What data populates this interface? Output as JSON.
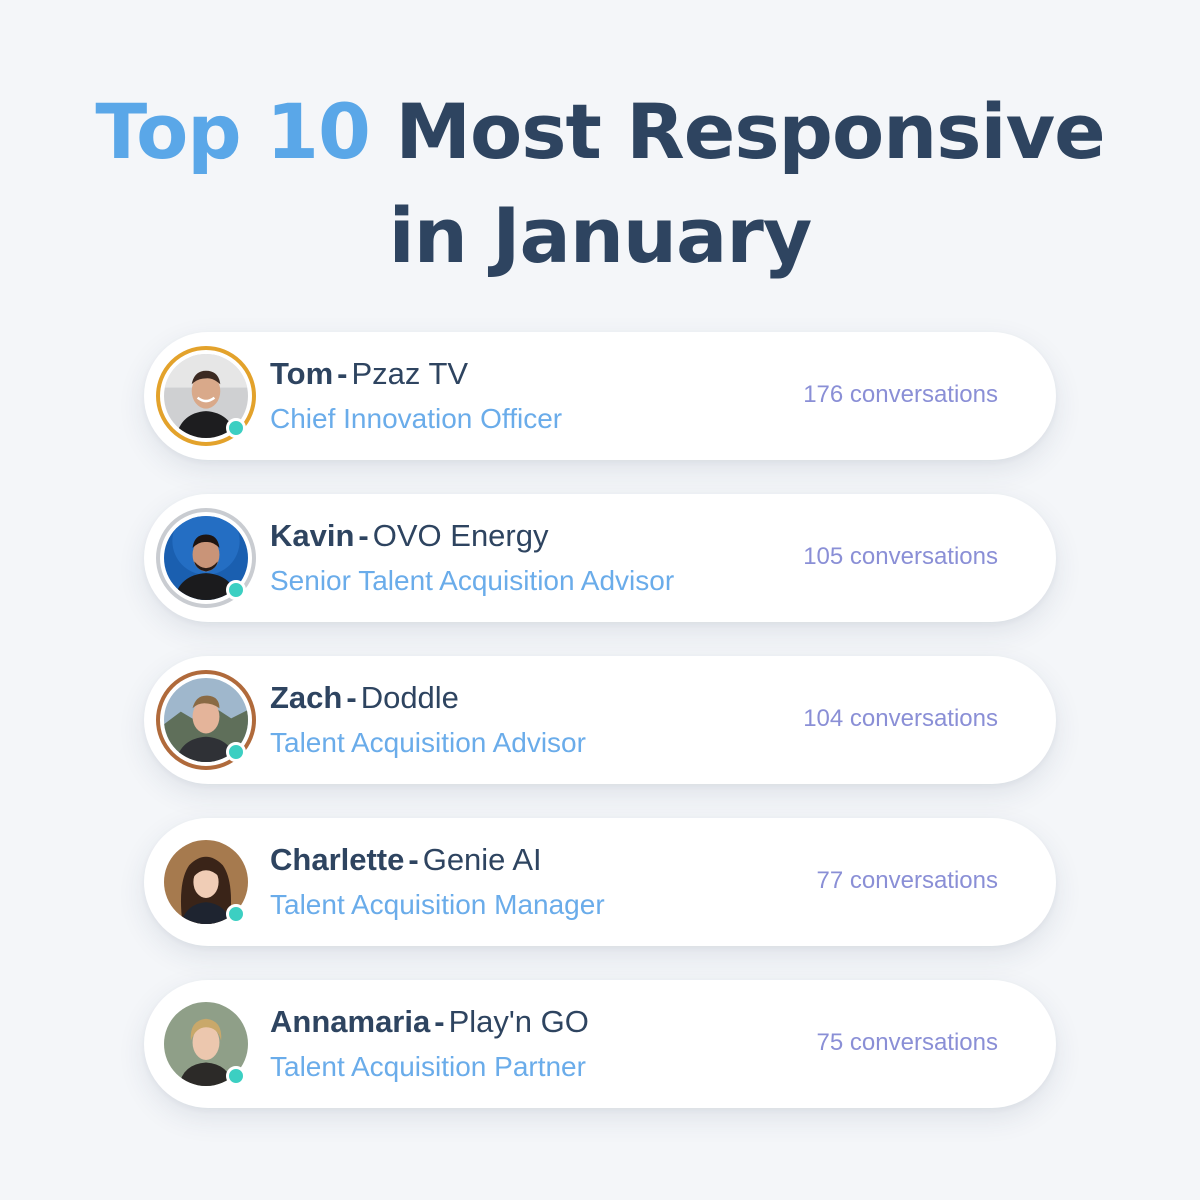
{
  "title": {
    "accent": "Top 10",
    "line1_rest": "Most Responsive",
    "line2": "in January"
  },
  "separator": "-",
  "colors": {
    "background": "#f4f6f9",
    "title": "#2e4460",
    "accent": "#5aa7e8",
    "role": "#6aacea",
    "count": "#8a8fd6",
    "status_online": "#3ccfc2"
  },
  "people": [
    {
      "name": "Tom",
      "company": "Pzaz TV",
      "role": "Chief Innovation Officer",
      "conversations": "176 conversations",
      "ring_color": "#e3a22b",
      "status": "online-icon"
    },
    {
      "name": "Kavin",
      "company": "OVO Energy",
      "role": "Senior Talent Acquisition Advisor",
      "conversations": "105 conversations",
      "ring_color": "#c9ccd1",
      "status": "online-icon"
    },
    {
      "name": "Zach",
      "company": "Doddle",
      "role": "Talent Acquisition Advisor",
      "conversations": "104 conversations",
      "ring_color": "#b06a3b",
      "status": "online-icon"
    },
    {
      "name": "Charlette",
      "company": "Genie AI",
      "role": "Talent Acquisition Manager",
      "conversations": "77 conversations",
      "ring_color": "#ffffff",
      "status": "online-icon"
    },
    {
      "name": "Annamaria",
      "company": "Play'n GO",
      "role": "Talent Acquisition Partner",
      "conversations": "75 conversations",
      "ring_color": "#ffffff",
      "status": "online-icon"
    }
  ]
}
